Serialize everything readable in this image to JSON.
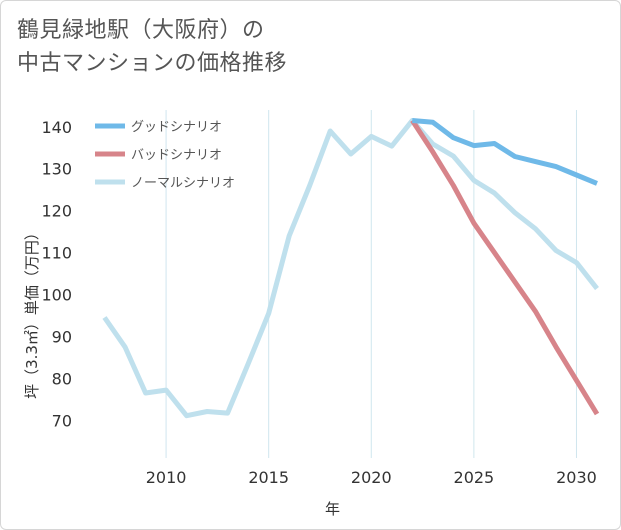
{
  "title": {
    "line1": "鶴見緑地駅（大阪府）の",
    "line2": "中古マンションの価格推移"
  },
  "chart_data": {
    "type": "line",
    "xlabel": "年",
    "ylabel": "坪（3.3㎡）単価（万円）",
    "xlim": [
      2006,
      2031
    ],
    "ylim": [
      61,
      144
    ],
    "xticks": [
      2010,
      2015,
      2020,
      2025,
      2030
    ],
    "yticks": [
      70,
      80,
      90,
      100,
      110,
      120,
      130,
      140
    ],
    "grid": "vertical",
    "legend_position": "top-left",
    "series": [
      {
        "name": "ノーマルシナリオ",
        "color": "#bfe0ed",
        "x": [
          2007,
          2008,
          2009,
          2010,
          2011,
          2012,
          2013,
          2014,
          2015,
          2016,
          2017,
          2018,
          2019,
          2020,
          2021,
          2022,
          2023,
          2024,
          2025,
          2026,
          2027,
          2028,
          2029,
          2030,
          2031
        ],
        "y": [
          94.5,
          87.5,
          76.5,
          77.2,
          71.1,
          72.1,
          71.7,
          83.5,
          95.5,
          114,
          126,
          139,
          133.5,
          137.7,
          135.4,
          141.5,
          135.9,
          133,
          127.2,
          124.2,
          119.5,
          115.7,
          110.5,
          107.6,
          101.4
        ]
      },
      {
        "name": "バッドシナリオ",
        "color": "#d7848a",
        "x": [
          2022,
          2023,
          2024,
          2025,
          2026,
          2027,
          2028,
          2029,
          2030,
          2031
        ],
        "y": [
          141.5,
          134,
          126,
          117,
          110,
          103,
          96,
          87.5,
          79.5,
          71.5
        ]
      },
      {
        "name": "グッドシナリオ",
        "color": "#6fb9e8",
        "x": [
          2022,
          2023,
          2024,
          2025,
          2026,
          2027,
          2028,
          2029,
          2030,
          2031
        ],
        "y": [
          141.5,
          141.1,
          137.4,
          135.5,
          136,
          132.9,
          131.7,
          130.5,
          128.5,
          126.5
        ]
      }
    ],
    "legend": [
      "グッドシナリオ",
      "バッドシナリオ",
      "ノーマルシナリオ"
    ]
  }
}
